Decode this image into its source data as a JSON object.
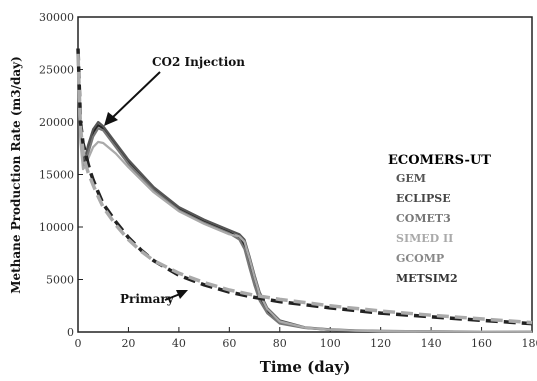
{
  "chart_data": {
    "type": "line",
    "title": "",
    "xlabel": "Time (day)",
    "ylabel": "Methane Production Rate (m3/day)",
    "xlim": [
      0,
      180
    ],
    "ylim": [
      0,
      30000
    ],
    "xticks": [
      0,
      20,
      40,
      60,
      80,
      100,
      120,
      140,
      160,
      180
    ],
    "yticks": [
      0,
      5000,
      10000,
      15000,
      20000,
      25000,
      30000
    ],
    "grid": false,
    "legend": {
      "title": "ECOMERS-UT",
      "placement": "right",
      "entries": [
        {
          "label": "GEM",
          "color": "#555555"
        },
        {
          "label": "ECLIPSE",
          "color": "#444444"
        },
        {
          "label": "COMET3",
          "color": "#777777"
        },
        {
          "label": "SIMED II",
          "color": "#aaaaaa"
        },
        {
          "label": "GCOMP",
          "color": "#888888"
        },
        {
          "label": "METSIM2",
          "color": "#333333"
        }
      ]
    },
    "annotations": [
      {
        "text": "CO2 Injection",
        "x": 8,
        "y": 19500
      },
      {
        "text": "Primary",
        "x": 35,
        "y": 3500
      }
    ],
    "series": [
      {
        "style": "solid",
        "color": "#222222",
        "x": [
          0,
          0.5,
          1,
          2,
          3,
          4,
          6,
          8,
          10,
          15,
          20,
          30,
          40,
          50,
          60,
          64,
          66,
          68,
          70,
          72,
          75,
          80,
          90,
          100,
          110,
          120,
          140,
          160,
          180
        ],
        "y": [
          27000,
          22000,
          19000,
          16000,
          16500,
          17500,
          19000,
          19700,
          19400,
          17800,
          16200,
          13600,
          11700,
          10500,
          9500,
          9000,
          8200,
          6500,
          4800,
          3300,
          2000,
          900,
          400,
          200,
          120,
          80,
          50,
          30,
          20
        ]
      },
      {
        "style": "solid",
        "color": "#555555",
        "x": [
          0,
          0.5,
          1,
          2,
          3,
          4,
          6,
          8,
          10,
          15,
          20,
          30,
          40,
          50,
          60,
          64,
          66,
          68,
          70,
          72,
          75,
          80,
          90,
          100,
          110,
          120,
          140,
          160,
          180
        ],
        "y": [
          26500,
          21500,
          18800,
          16300,
          16800,
          17800,
          19300,
          20000,
          19600,
          18000,
          16400,
          13800,
          11900,
          10700,
          9700,
          9300,
          8800,
          7200,
          5400,
          3800,
          2300,
          1100,
          450,
          250,
          150,
          100,
          60,
          40,
          25
        ]
      },
      {
        "style": "solid",
        "color": "#777777",
        "x": [
          0,
          0.5,
          1,
          2,
          3,
          4,
          6,
          8,
          10,
          15,
          20,
          30,
          40,
          50,
          60,
          64,
          66,
          68,
          70,
          72,
          75,
          80,
          90,
          100,
          110,
          120,
          140,
          160,
          180
        ],
        "y": [
          26000,
          21000,
          18500,
          15800,
          16200,
          17000,
          18600,
          19400,
          19200,
          17600,
          16000,
          13500,
          11600,
          10400,
          9400,
          8800,
          7900,
          6100,
          4400,
          3000,
          1800,
          800,
          380,
          200,
          120,
          80,
          50,
          30,
          20
        ]
      },
      {
        "style": "solid",
        "color": "#aaaaaa",
        "x": [
          0,
          0.5,
          1,
          2,
          3,
          4,
          6,
          8,
          10,
          15,
          20,
          30,
          40,
          50,
          60,
          64,
          66,
          68,
          70,
          72,
          75,
          80,
          90,
          100,
          110,
          120,
          140,
          160,
          180
        ],
        "y": [
          25500,
          20500,
          18000,
          15500,
          15800,
          16500,
          17600,
          18100,
          18000,
          17000,
          15700,
          13300,
          11500,
          10300,
          9300,
          9100,
          8600,
          7000,
          5200,
          3600,
          2200,
          1000,
          420,
          220,
          130,
          90,
          55,
          35,
          22
        ]
      },
      {
        "style": "dashed",
        "color": "#222222",
        "x": [
          0,
          1,
          2,
          3,
          4,
          5,
          6,
          8,
          10,
          15,
          20,
          25,
          30,
          40,
          50,
          60,
          70,
          80,
          100,
          120,
          140,
          160,
          180
        ],
        "y": [
          27000,
          20000,
          18000,
          17000,
          16000,
          15200,
          14500,
          13300,
          12200,
          10500,
          9000,
          7800,
          6800,
          5400,
          4500,
          3800,
          3300,
          2900,
          2300,
          1800,
          1450,
          1100,
          800
        ]
      },
      {
        "style": "dashed",
        "color": "#aaaaaa",
        "x": [
          0,
          1,
          2,
          3,
          4,
          5,
          6,
          8,
          10,
          15,
          20,
          25,
          30,
          40,
          50,
          60,
          70,
          80,
          100,
          120,
          140,
          160,
          180
        ],
        "y": [
          26500,
          19500,
          17200,
          16000,
          15200,
          14600,
          14000,
          12900,
          11900,
          10200,
          8800,
          7700,
          6800,
          5600,
          4700,
          4000,
          3500,
          3100,
          2500,
          2000,
          1600,
          1250,
          900
        ]
      }
    ]
  }
}
